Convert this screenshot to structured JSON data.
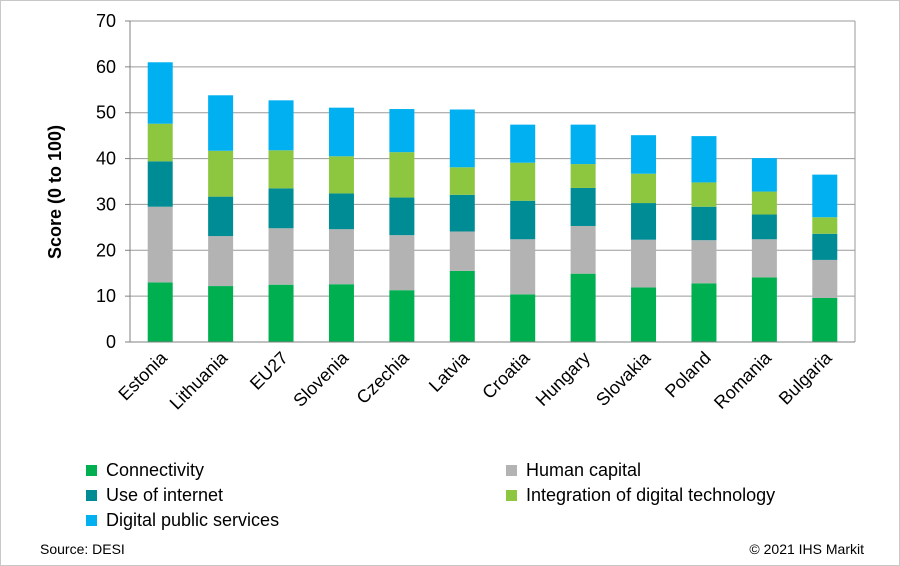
{
  "chart_data": {
    "type": "bar",
    "stacked": true,
    "title": "",
    "ylabel": "Score (0 to 100)",
    "xlabel": "",
    "ylim": [
      0,
      70
    ],
    "yticks": [
      0,
      10,
      20,
      30,
      40,
      50,
      60,
      70
    ],
    "grid": true,
    "legend_position": "bottom",
    "categories": [
      "Estonia",
      "Lithuania",
      "EU27",
      "Slovenia",
      "Czechia",
      "Latvia",
      "Croatia",
      "Hungary",
      "Slovakia",
      "Poland",
      "Romania",
      "Bulgaria"
    ],
    "series": [
      {
        "name": "Connectivity",
        "color": "#00b050",
        "values": [
          13.0,
          12.2,
          12.5,
          12.6,
          11.3,
          15.5,
          10.4,
          14.9,
          11.9,
          12.8,
          14.1,
          9.6
        ]
      },
      {
        "name": "Human capital",
        "color": "#b3b3b3",
        "values": [
          16.5,
          10.9,
          12.3,
          12.0,
          12.0,
          8.6,
          12.0,
          10.4,
          10.4,
          9.4,
          8.3,
          8.3
        ]
      },
      {
        "name": "Use of internet",
        "color": "#008c95",
        "values": [
          9.9,
          8.6,
          8.7,
          7.8,
          8.2,
          8.0,
          8.4,
          8.3,
          8.0,
          7.3,
          5.4,
          5.7
        ]
      },
      {
        "name": "Integration of digital technology",
        "color": "#8dc63f",
        "values": [
          8.2,
          10.0,
          8.3,
          8.1,
          9.9,
          6.0,
          8.3,
          5.2,
          6.4,
          5.3,
          5.0,
          3.6
        ]
      },
      {
        "name": "Digital public services",
        "color": "#00b0f0",
        "values": [
          13.4,
          12.1,
          10.9,
          10.6,
          9.4,
          12.6,
          8.3,
          8.6,
          8.4,
          10.1,
          7.3,
          9.3
        ]
      }
    ]
  },
  "legend": {
    "items": [
      {
        "label": "Connectivity",
        "color": "#00b050"
      },
      {
        "label": "Human capital",
        "color": "#b3b3b3"
      },
      {
        "label": "Use of internet",
        "color": "#008c95"
      },
      {
        "label": "Integration of digital technology",
        "color": "#8dc63f"
      },
      {
        "label": "Digital public services",
        "color": "#00b0f0"
      }
    ]
  },
  "footer": {
    "source": "Source: DESI",
    "copyright": "© 2021 IHS Markit"
  }
}
